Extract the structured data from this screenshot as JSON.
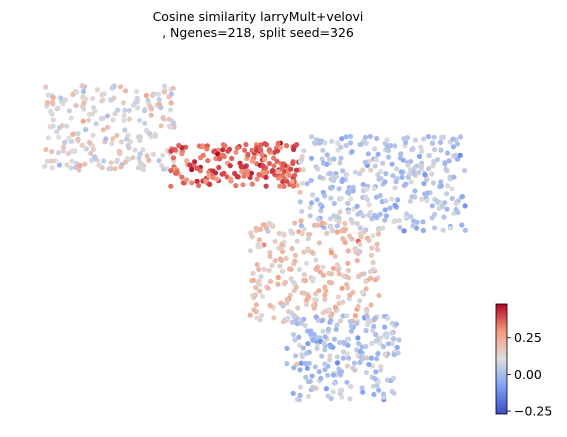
{
  "chart_data": {
    "type": "scatter",
    "title_line1": "Cosine similarity larryMult+velovi",
    "title_line2": ", Ngenes=218, split seed=326",
    "xlabel": "",
    "ylabel": "",
    "axes_visible": false,
    "colormap": "coolwarm",
    "color_range": [
      -0.27,
      0.48
    ],
    "colorbar": {
      "ticks": [
        -0.25,
        0.0,
        0.25
      ],
      "tick_labels": [
        "−0.25",
        "0.00",
        "0.25"
      ],
      "placement": "bottom-right"
    },
    "regions": [
      {
        "name": "upper-left arm",
        "x_range": [
          0.5,
          4.5
        ],
        "y_range": [
          6.8,
          9.3
        ],
        "mean_value": 0.12,
        "approx_points": 230
      },
      {
        "name": "central band",
        "x_range": [
          4.3,
          8.2
        ],
        "y_range": [
          6.3,
          7.6
        ],
        "mean_value": 0.36,
        "approx_points": 200
      },
      {
        "name": "right lobe",
        "x_range": [
          8.2,
          13.2
        ],
        "y_range": [
          5.0,
          7.8
        ],
        "mean_value": 0.03,
        "approx_points": 330
      },
      {
        "name": "middle lobe",
        "x_range": [
          6.7,
          10.6
        ],
        "y_range": [
          2.3,
          5.3
        ],
        "mean_value": 0.18,
        "approx_points": 260
      },
      {
        "name": "lower arm",
        "x_range": [
          7.8,
          11.2
        ],
        "y_range": [
          0.0,
          2.5
        ],
        "mean_value": 0.03,
        "approx_points": 220
      }
    ]
  }
}
